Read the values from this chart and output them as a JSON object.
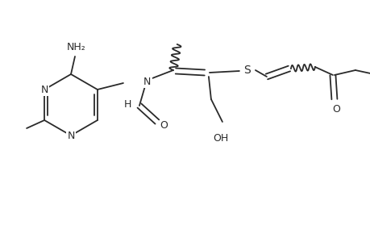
{
  "bg_color": "#ffffff",
  "line_color": "#2a2a2a",
  "lw": 1.3,
  "fontsize": 9,
  "fig_width": 4.6,
  "fig_height": 3.0,
  "dpi": 100,
  "xlim": [
    0,
    460
  ],
  "ylim": [
    0,
    300
  ]
}
